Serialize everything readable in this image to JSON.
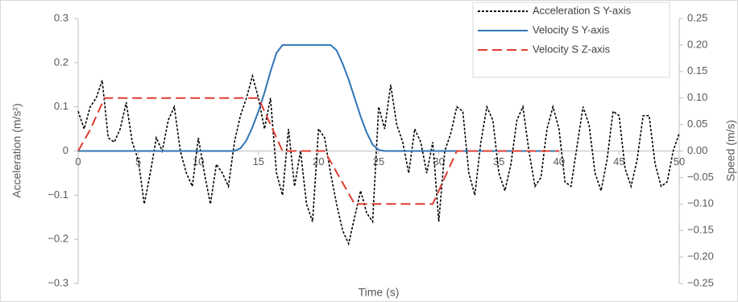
{
  "chart_data": {
    "type": "line",
    "xlabel": "Time (s)",
    "ylabel": "Acceleration (m/s²)",
    "y2label": "Speed (m/s)",
    "xlim": [
      0,
      50
    ],
    "xticks": [
      0,
      5,
      10,
      15,
      20,
      25,
      30,
      35,
      40,
      45,
      50
    ],
    "ylim": [
      -0.3,
      0.3
    ],
    "yticks": [
      {
        "value": -0.3,
        "label": "−0.3"
      },
      {
        "value": -0.2,
        "label": "−0.2"
      },
      {
        "value": -0.1,
        "label": "−0.1"
      },
      0,
      0.1,
      0.2,
      0.3
    ],
    "y2lim": [
      -0.25,
      0.25
    ],
    "y2ticks": [
      {
        "value": -0.25,
        "label": "−0.25"
      },
      {
        "value": -0.2,
        "label": "−0.20"
      },
      {
        "value": -0.15,
        "label": "−0.15"
      },
      {
        "value": -0.1,
        "label": "−0.10"
      },
      {
        "value": -0.05,
        "label": "−0.05"
      },
      {
        "value": 0,
        "label": "0.00"
      },
      {
        "value": 0.05,
        "label": "0.05"
      },
      {
        "value": 0.1,
        "label": "0.10"
      },
      {
        "value": 0.15,
        "label": "0.15"
      },
      {
        "value": 0.2,
        "label": "0.20"
      },
      {
        "value": 0.25,
        "label": "0.25"
      }
    ],
    "grid": false,
    "legend": "top-right",
    "series": [
      {
        "name": "Acceleration S Y-axis",
        "color": "#000000",
        "linestyle": "dotted",
        "axis": "y",
        "x": [
          0,
          0.5,
          1,
          1.5,
          2,
          2.5,
          3,
          3.5,
          4,
          4.5,
          5,
          5.5,
          6,
          6.5,
          7,
          7.5,
          8,
          8.5,
          9,
          9.5,
          10,
          10.5,
          11,
          11.5,
          12,
          12.5,
          13,
          13.5,
          14,
          14.5,
          15,
          15.5,
          16,
          16.5,
          17,
          17.5,
          18,
          18.5,
          19,
          19.5,
          20,
          20.5,
          21,
          21.5,
          22,
          22.5,
          23,
          23.5,
          24,
          24.5,
          25,
          25.5,
          26,
          26.5,
          27,
          27.5,
          28,
          28.5,
          29,
          29.5,
          30,
          30.5,
          31,
          31.5,
          32,
          32.5,
          33,
          33.5,
          34,
          34.5,
          35,
          35.5,
          36,
          36.5,
          37,
          37.5,
          38,
          38.5,
          39,
          39.5,
          40,
          40.5,
          41,
          41.5,
          42,
          42.5,
          43,
          43.5,
          44,
          44.5,
          45,
          45.5,
          46,
          46.5,
          47,
          47.5,
          48,
          48.5,
          49,
          49.5,
          50
        ],
        "values": [
          0.09,
          0.05,
          0.1,
          0.12,
          0.16,
          0.03,
          0.02,
          0.05,
          0.11,
          0.02,
          -0.02,
          -0.12,
          -0.05,
          0.03,
          0.0,
          0.07,
          0.1,
          0.0,
          -0.05,
          -0.08,
          0.03,
          -0.05,
          -0.12,
          -0.03,
          -0.05,
          -0.08,
          0.02,
          0.08,
          0.12,
          0.17,
          0.12,
          0.05,
          0.12,
          -0.05,
          -0.1,
          0.05,
          -0.08,
          0.0,
          -0.12,
          -0.16,
          0.05,
          0.03,
          -0.05,
          -0.12,
          -0.18,
          -0.21,
          -0.15,
          -0.09,
          -0.14,
          -0.16,
          0.1,
          0.05,
          0.15,
          0.06,
          0.02,
          -0.05,
          0.05,
          0.02,
          -0.05,
          0.02,
          -0.16,
          0.0,
          0.04,
          0.1,
          0.09,
          -0.05,
          -0.1,
          0.02,
          0.1,
          0.07,
          -0.05,
          -0.09,
          -0.03,
          0.07,
          0.1,
          0.0,
          -0.08,
          -0.06,
          0.05,
          0.1,
          0.05,
          -0.07,
          -0.08,
          0.01,
          0.1,
          0.06,
          -0.05,
          -0.09,
          -0.02,
          0.09,
          0.08,
          -0.04,
          -0.08,
          -0.02,
          0.08,
          0.08,
          -0.03,
          -0.08,
          -0.07,
          0.0,
          0.04
        ]
      },
      {
        "name": "Velocity S Y-axis",
        "color": "#2e75b6",
        "linestyle": "solid",
        "axis": "y2",
        "x": [
          0,
          13,
          13.5,
          14,
          14.5,
          15,
          15.5,
          16,
          16.5,
          17,
          21,
          21.5,
          22,
          22.5,
          23,
          23.5,
          24,
          24.5,
          25,
          25.5,
          40
        ],
        "values": [
          0,
          0,
          0.005,
          0.02,
          0.045,
          0.075,
          0.11,
          0.15,
          0.185,
          0.2,
          0.2,
          0.19,
          0.165,
          0.135,
          0.1,
          0.065,
          0.035,
          0.012,
          0.002,
          0,
          0
        ]
      },
      {
        "name": "Velocity S Z-axis",
        "color": "#e03c31",
        "linestyle": "dashed",
        "axis": "y2",
        "x": [
          0,
          1,
          2.2,
          15,
          17,
          20.5,
          23,
          29.5,
          31.5,
          40
        ],
        "values": [
          0,
          0.04,
          0.1,
          0.1,
          0,
          0,
          -0.1,
          -0.1,
          0,
          0
        ]
      }
    ]
  }
}
